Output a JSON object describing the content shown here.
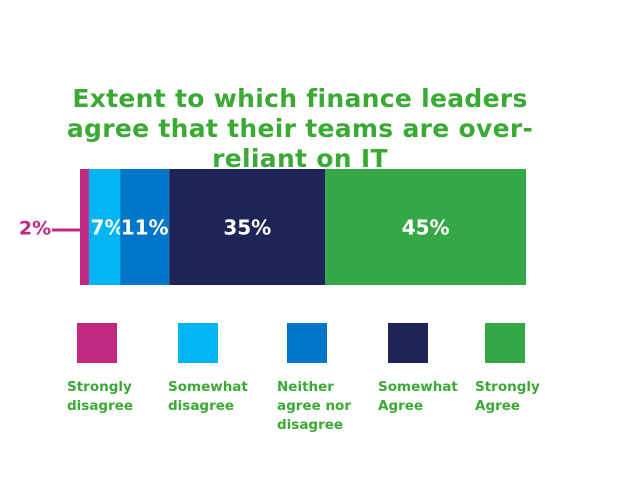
{
  "chart_data": {
    "type": "stacked-bar",
    "title": "Extent to which finance leaders agree that their teams are over-reliant on IT",
    "series": [
      {
        "name": "Strongly disagree",
        "color": "#c1287f",
        "values": [
          2
        ],
        "value_labels": [
          "2%"
        ]
      },
      {
        "name": "Somewhat disagree",
        "color": "#00b5f1",
        "values": [
          7
        ],
        "value_labels": [
          "7%"
        ]
      },
      {
        "name": "Neither agree nor disagree",
        "color": "#0077c8",
        "values": [
          11
        ],
        "value_labels": [
          "11%"
        ]
      },
      {
        "name": "Somewhat Agree",
        "color": "#1f2456",
        "values": [
          35
        ],
        "value_labels": [
          "35%"
        ]
      },
      {
        "name": "Strongly Agree",
        "color": "#34a847",
        "values": [
          45
        ],
        "value_labels": [
          "45%"
        ]
      }
    ]
  }
}
